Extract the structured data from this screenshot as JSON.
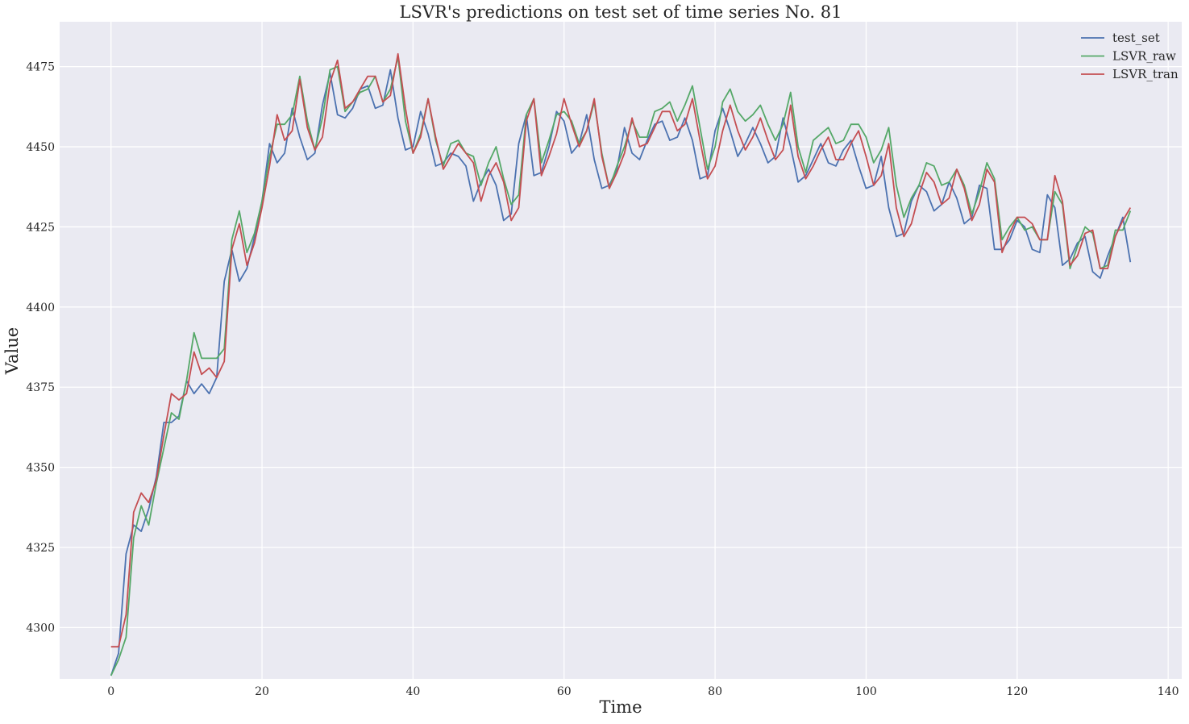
{
  "chart_data": {
    "type": "line",
    "title": "LSVR's predictions on test set of time series No. 81",
    "xlabel": "Time",
    "ylabel": "Value",
    "xlim": [
      -6.8,
      141.8
    ],
    "ylim": [
      4284.0,
      4489.0
    ],
    "xticks": [
      0,
      20,
      40,
      60,
      80,
      100,
      120,
      140
    ],
    "yticks": [
      4300,
      4325,
      4350,
      4375,
      4400,
      4425,
      4450,
      4475
    ],
    "grid": true,
    "legend": "top-right",
    "x": [
      0,
      1,
      2,
      3,
      4,
      5,
      6,
      7,
      8,
      9,
      10,
      11,
      12,
      13,
      14,
      15,
      16,
      17,
      18,
      19,
      20,
      21,
      22,
      23,
      24,
      25,
      26,
      27,
      28,
      29,
      30,
      31,
      32,
      33,
      34,
      35,
      36,
      37,
      38,
      39,
      40,
      41,
      42,
      43,
      44,
      45,
      46,
      47,
      48,
      49,
      50,
      51,
      52,
      53,
      54,
      55,
      56,
      57,
      58,
      59,
      60,
      61,
      62,
      63,
      64,
      65,
      66,
      67,
      68,
      69,
      70,
      71,
      72,
      73,
      74,
      75,
      76,
      77,
      78,
      79,
      80,
      81,
      82,
      83,
      84,
      85,
      86,
      87,
      88,
      89,
      90,
      91,
      92,
      93,
      94,
      95,
      96,
      97,
      98,
      99,
      100,
      101,
      102,
      103,
      104,
      105,
      106,
      107,
      108,
      109,
      110,
      111,
      112,
      113,
      114,
      115,
      116,
      117,
      118,
      119,
      120,
      121,
      122,
      123,
      124,
      125,
      126,
      127,
      128,
      129,
      130,
      131,
      132,
      133,
      134,
      135
    ],
    "series": [
      {
        "name": "test_set",
        "color": "#4c72b0",
        "values": [
          4285,
          4292,
          4323,
          4332,
          4330,
          4337,
          4347,
          4364,
          4364,
          4366,
          4377,
          4373,
          4376,
          4373,
          4378,
          4408,
          4418,
          4408,
          4412,
          4422,
          4433,
          4451,
          4445,
          4448,
          4462,
          4453,
          4446,
          4448,
          4463,
          4473,
          4460,
          4459,
          4462,
          4468,
          4469,
          4462,
          4463,
          4474,
          4459,
          4449,
          4450,
          4461,
          4454,
          4444,
          4445,
          4448,
          4447,
          4444,
          4433,
          4439,
          4443,
          4438,
          4427,
          4429,
          4451,
          4460,
          4441,
          4442,
          4450,
          4461,
          4458,
          4448,
          4451,
          4460,
          4446,
          4437,
          4438,
          4443,
          4456,
          4448,
          4446,
          4452,
          4457,
          4458,
          4452,
          4453,
          4459,
          4452,
          4440,
          4441,
          4455,
          4462,
          4455,
          4447,
          4451,
          4456,
          4451,
          4445,
          4447,
          4459,
          4450,
          4439,
          4441,
          4446,
          4451,
          4445,
          4444,
          4449,
          4452,
          4444,
          4437,
          4438,
          4447,
          4431,
          4422,
          4423,
          4433,
          4438,
          4436,
          4430,
          4432,
          4439,
          4434,
          4426,
          4428,
          4438,
          4437,
          4418,
          4418,
          4421,
          4427,
          4425,
          4418,
          4417,
          4435,
          4431,
          4413,
          4415,
          4420,
          4422,
          4411,
          4409,
          4416,
          4422,
          4428,
          4414
        ]
      },
      {
        "name": "LSVR_raw",
        "color": "#55a868",
        "values": [
          4285,
          4290,
          4297,
          4328,
          4338,
          4332,
          4345,
          4356,
          4367,
          4365,
          4377,
          4392,
          4384,
          4384,
          4384,
          4387,
          4421,
          4430,
          4417,
          4423,
          4433,
          4447,
          4457,
          4457,
          4460,
          4472,
          4458,
          4449,
          4459,
          4474,
          4475,
          4461,
          4464,
          4467,
          4468,
          4472,
          4464,
          4468,
          4478,
          4458,
          4448,
          4454,
          4465,
          4452,
          4444,
          4451,
          4452,
          4448,
          4447,
          4438,
          4445,
          4450,
          4440,
          4432,
          4435,
          4460,
          4465,
          4445,
          4452,
          4460,
          4461,
          4458,
          4451,
          4455,
          4464,
          4448,
          4437,
          4444,
          4450,
          4458,
          4453,
          4453,
          4461,
          4462,
          4464,
          4458,
          4463,
          4469,
          4456,
          4443,
          4450,
          4464,
          4468,
          4461,
          4458,
          4460,
          4463,
          4457,
          4452,
          4457,
          4467,
          4450,
          4442,
          4452,
          4454,
          4456,
          4451,
          4452,
          4457,
          4457,
          4453,
          4445,
          4449,
          4456,
          4438,
          4428,
          4434,
          4438,
          4445,
          4444,
          4438,
          4439,
          4443,
          4438,
          4429,
          4436,
          4445,
          4440,
          4421,
          4425,
          4428,
          4424,
          4425,
          4421,
          4421,
          4436,
          4432,
          4412,
          4419,
          4425,
          4423,
          4412,
          4413,
          4424,
          4424,
          4430
        ]
      },
      {
        "name": "LSVR_tran",
        "color": "#c44e52",
        "values": [
          4294,
          4294,
          4304,
          4336,
          4342,
          4339,
          4346,
          4360,
          4373,
          4371,
          4373,
          4386,
          4379,
          4381,
          4378,
          4383,
          4418,
          4426,
          4413,
          4420,
          4431,
          4444,
          4460,
          4452,
          4455,
          4471,
          4456,
          4449,
          4453,
          4470,
          4477,
          4462,
          4464,
          4468,
          4472,
          4472,
          4464,
          4466,
          4479,
          4462,
          4448,
          4453,
          4465,
          4453,
          4443,
          4447,
          4451,
          4448,
          4445,
          4433,
          4441,
          4445,
          4439,
          4427,
          4431,
          4458,
          4465,
          4441,
          4447,
          4454,
          4465,
          4457,
          4450,
          4455,
          4465,
          4447,
          4437,
          4442,
          4448,
          4459,
          4450,
          4451,
          4456,
          4461,
          4461,
          4455,
          4457,
          4465,
          4452,
          4440,
          4444,
          4455,
          4463,
          4455,
          4449,
          4453,
          4459,
          4452,
          4446,
          4449,
          4463,
          4447,
          4440,
          4444,
          4449,
          4453,
          4446,
          4446,
          4451,
          4455,
          4447,
          4438,
          4441,
          4451,
          4431,
          4422,
          4426,
          4435,
          4442,
          4439,
          4432,
          4434,
          4443,
          4437,
          4427,
          4432,
          4443,
          4439,
          4417,
          4423,
          4428,
          4428,
          4426,
          4421,
          4421,
          4441,
          4433,
          4413,
          4416,
          4423,
          4424,
          4412,
          4412,
          4422,
          4427,
          4431
        ]
      }
    ]
  }
}
